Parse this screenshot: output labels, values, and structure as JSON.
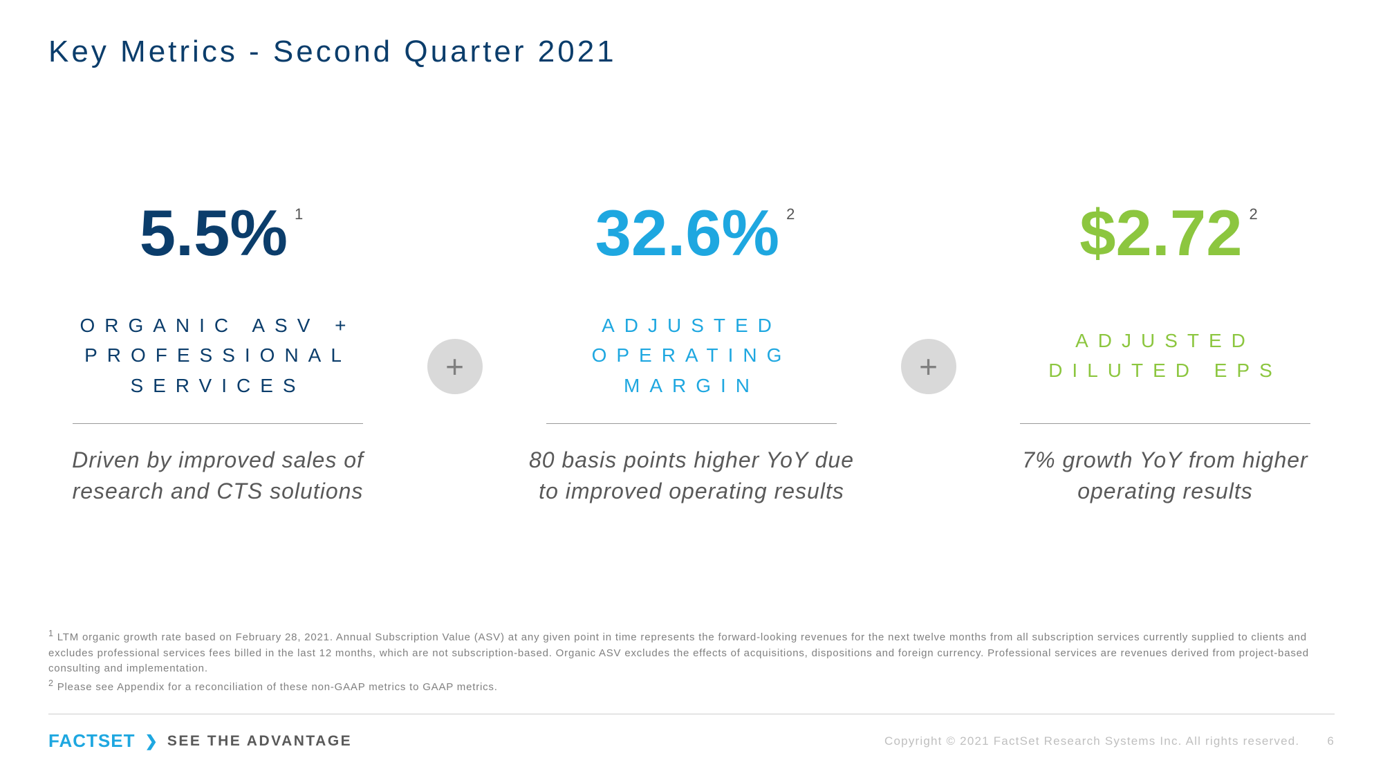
{
  "title": "Key Metrics - Second Quarter 2021",
  "title_color": "#0b3d6b",
  "metrics": [
    {
      "value": "5.5%",
      "footnote_mark": "1",
      "value_color": "#0b3d6b",
      "label": "ORGANIC ASV + PROFESSIONAL SERVICES",
      "label_color": "#0b3d6b",
      "description": "Driven by improved sales of research and CTS solutions"
    },
    {
      "value": "32.6%",
      "footnote_mark": "2",
      "value_color": "#1ea7e0",
      "label": "ADJUSTED OPERATING MARGIN",
      "label_color": "#1ea7e0",
      "description": "80 basis points higher YoY due to improved operating results"
    },
    {
      "value": "$2.72",
      "footnote_mark": "2",
      "value_color": "#8cc63f",
      "label": "ADJUSTED DILUTED EPS",
      "label_color": "#8cc63f",
      "description": "7% growth YoY from higher operating results"
    }
  ],
  "plus_symbol": "+",
  "footnotes": {
    "note1_mark": "1",
    "note1": " LTM organic growth rate based on February 28, 2021. Annual Subscription Value (ASV) at any given point in time represents the forward-looking revenues for the next twelve months from all subscription services currently supplied to clients and excludes professional services fees billed in the last 12 months, which are not subscription-based. Organic ASV excludes the effects of acquisitions, dispositions and foreign currency. Professional services are revenues derived from project-based consulting and implementation.",
    "note2_mark": "2",
    "note2": " Please see Appendix for a reconciliation of these non-GAAP metrics to GAAP metrics."
  },
  "footer": {
    "logo": "FACTSET",
    "chevron": "❯",
    "tagline": "SEE THE ADVANTAGE",
    "copyright": "Copyright © 2021 FactSet Research Systems Inc. All rights reserved.",
    "page_number": "6"
  }
}
